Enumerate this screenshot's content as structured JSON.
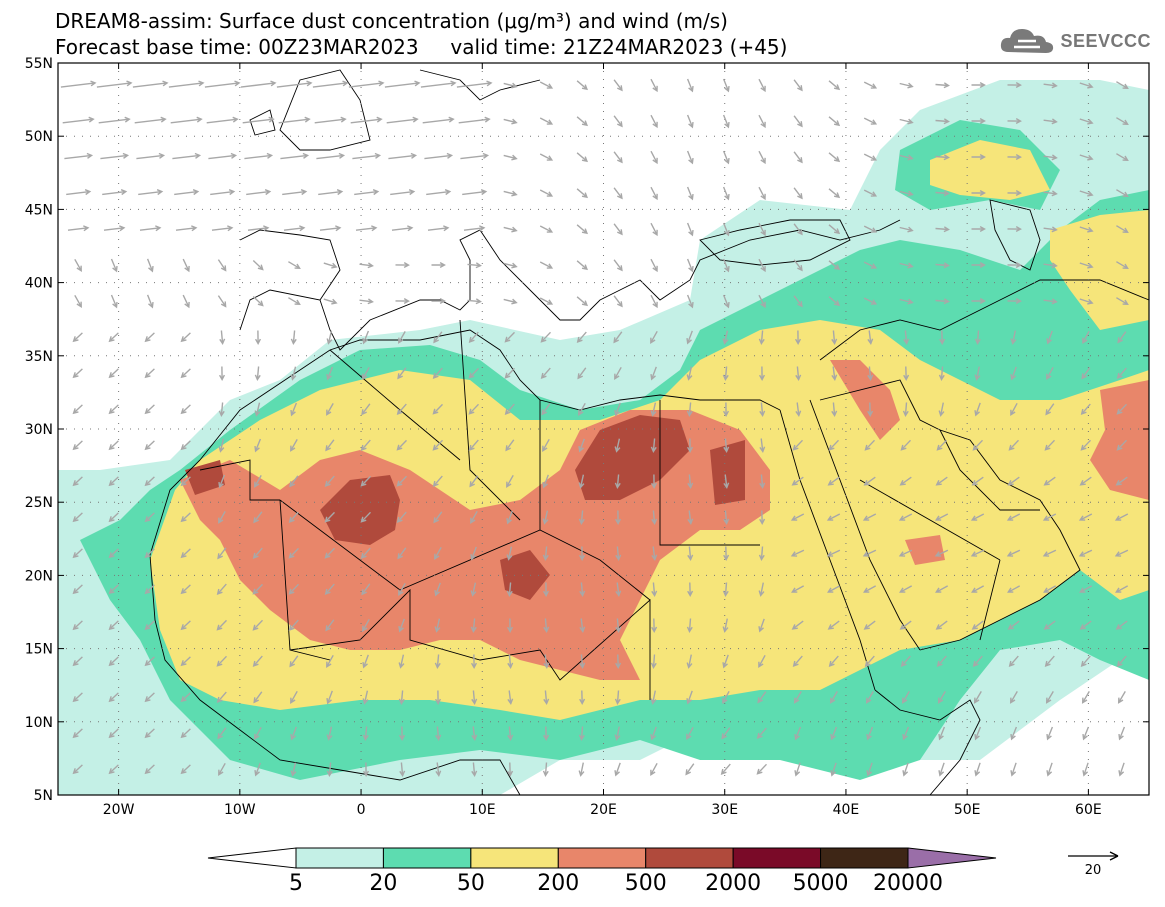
{
  "header": {
    "title_line1": "DREAM8-assim: Surface dust concentration (μg/m³) and wind (m/s)",
    "title_line2": "Forecast base time: 00Z23MAR2023     valid time: 21Z24MAR2023 (+45)",
    "logo_text": "SEEVCCC",
    "logo_icon": "cloud-icon"
  },
  "map": {
    "lon_range": [
      -25,
      65
    ],
    "lat_range": [
      5,
      55
    ],
    "lon_ticks": [
      {
        "value": -20,
        "label": "20W"
      },
      {
        "value": -10,
        "label": "10W"
      },
      {
        "value": 0,
        "label": "0"
      },
      {
        "value": 10,
        "label": "10E"
      },
      {
        "value": 20,
        "label": "20E"
      },
      {
        "value": 30,
        "label": "30E"
      },
      {
        "value": 40,
        "label": "40E"
      },
      {
        "value": 50,
        "label": "50E"
      },
      {
        "value": 60,
        "label": "60E"
      }
    ],
    "lat_ticks": [
      {
        "value": 55,
        "label": "55N"
      },
      {
        "value": 50,
        "label": "50N"
      },
      {
        "value": 45,
        "label": "45N"
      },
      {
        "value": 40,
        "label": "40N"
      },
      {
        "value": 35,
        "label": "35N"
      },
      {
        "value": 30,
        "label": "30N"
      },
      {
        "value": 25,
        "label": "25N"
      },
      {
        "value": 20,
        "label": "20N"
      },
      {
        "value": 15,
        "label": "15N"
      },
      {
        "value": 10,
        "label": "10N"
      },
      {
        "value": 5,
        "label": "5N"
      }
    ],
    "grid": "dotted"
  },
  "colorbar": {
    "colors": [
      "#ffffff",
      "#c4f0e6",
      "#5ddcb0",
      "#f6e57a",
      "#e8866a",
      "#b04a3c",
      "#7a0a28",
      "#3e2616",
      "#9a6ea8"
    ],
    "labels": [
      "5",
      "20",
      "50",
      "200",
      "500",
      "2000",
      "5000",
      "20000"
    ]
  },
  "wind_reference": {
    "label": "20",
    "arrow_color": "#000000"
  },
  "wind_arrow_color": "#a8a8a8"
}
